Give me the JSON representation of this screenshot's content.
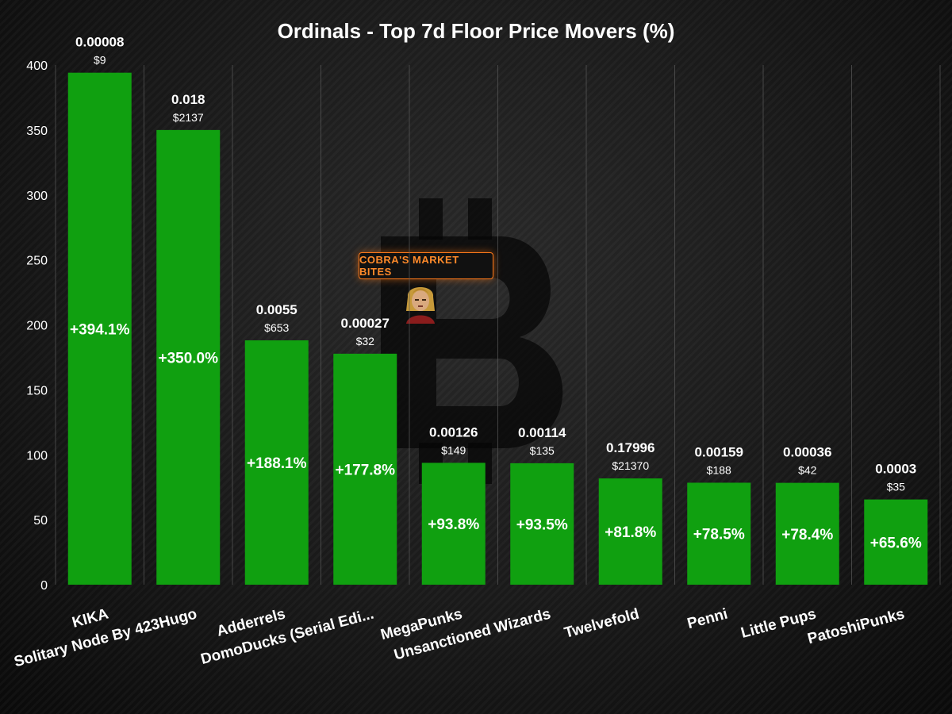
{
  "brand": {
    "text": "COBRA'S MARKET BITES",
    "accent_color": "#ff7a1a"
  },
  "colors": {
    "bar": "#10a010",
    "background": "#0d0d0d",
    "grid": "#5a5a5a",
    "text": "#ffffff"
  },
  "chart_data": {
    "type": "bar",
    "title": "Ordinals - Top 7d Floor Price Movers (%)",
    "xlabel": "",
    "ylabel": "",
    "ylim": [
      0,
      400
    ],
    "yticks": [
      0,
      50,
      100,
      150,
      200,
      250,
      300,
      350,
      400
    ],
    "grid": "vertical separators between categories",
    "categories": [
      "KIKA",
      "Solitary Node By 423Hugo",
      "Adderrels",
      "DomoDucks (Serial Edi...",
      "MegaPunks",
      "Unsanctioned Wizards",
      "Twelvefold",
      "Penni",
      "Little Pups",
      "PatoshiPunks"
    ],
    "values": [
      394.1,
      350.0,
      188.1,
      177.8,
      93.8,
      93.5,
      81.8,
      78.5,
      78.4,
      65.6
    ],
    "value_labels": [
      "+394.1%",
      "+350.0%",
      "+188.1%",
      "+177.8%",
      "+93.8%",
      "+93.5%",
      "+81.8%",
      "+78.5%",
      "+78.4%",
      "+65.6%"
    ],
    "floor_btc": [
      "0.00008",
      "0.018",
      "0.0055",
      "0.00027",
      "0.00126",
      "0.00114",
      "0.17996",
      "0.00159",
      "0.00036",
      "0.0003"
    ],
    "floor_usd": [
      "$9",
      "$2137",
      "$653",
      "$32",
      "$149",
      "$135",
      "$21370",
      "$188",
      "$42",
      "$35"
    ]
  }
}
